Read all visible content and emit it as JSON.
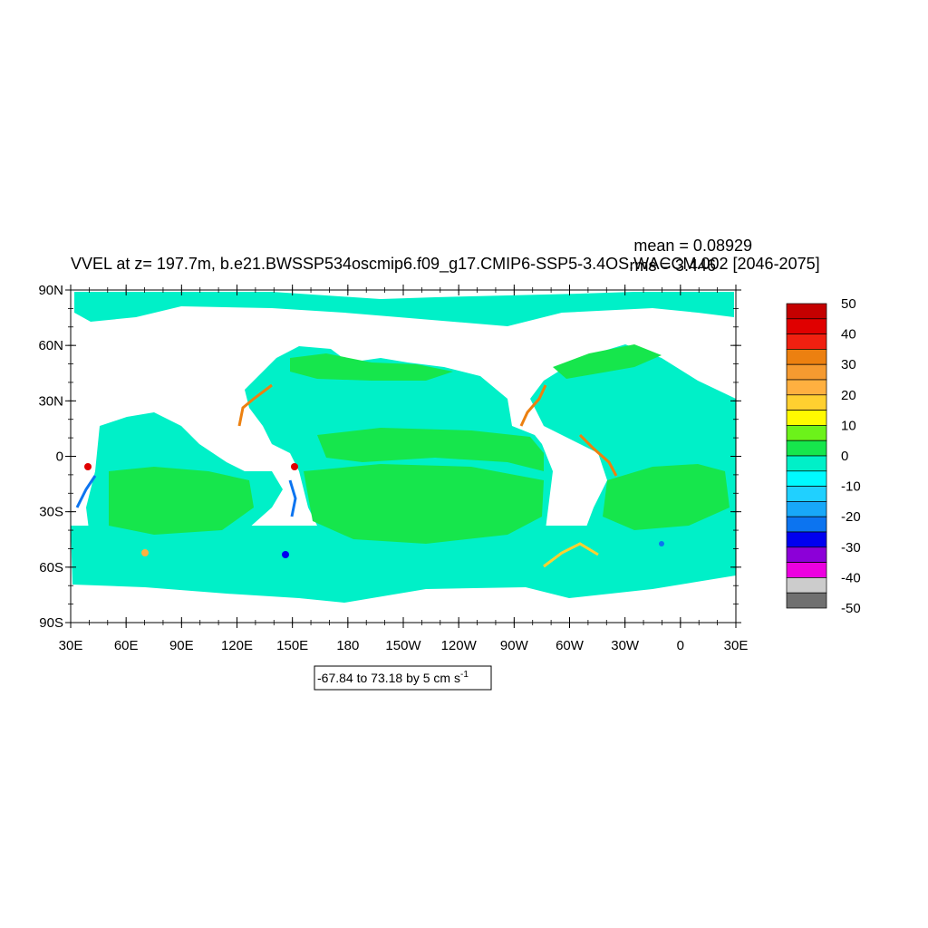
{
  "title": "VVEL at z= 197.7m, b.e21.BWSSP534oscmip6.f09_g17.CMIP6-SSP5-3.4OS.WACCM.002 [2046-2075]",
  "stats": {
    "mean": "mean = 0.08929",
    "rms": "rms = 3.446"
  },
  "contour_info": "-67.84 to 73.18 by 5 cm s",
  "contour_info_sup": "-1",
  "lat_labels": [
    "90N",
    "60N",
    "30N",
    "0",
    "30S",
    "60S",
    "90S"
  ],
  "lon_labels": [
    "30E",
    "60E",
    "90E",
    "120E",
    "150E",
    "180",
    "150W",
    "120W",
    "90W",
    "60W",
    "30W",
    "0",
    "30E"
  ],
  "colorbar": {
    "labels": [
      "50",
      "40",
      "30",
      "20",
      "10",
      "0",
      "-10",
      "-20",
      "-30",
      "-40",
      "-50"
    ],
    "colors": [
      "#c40000",
      "#e00000",
      "#f02010",
      "#ec8010",
      "#f59a30",
      "#ffb040",
      "#ffd030",
      "#fffa00",
      "#6cf21a",
      "#16e64c",
      "#00f0c8",
      "#00faff",
      "#20d0ff",
      "#18a8f8",
      "#0c74f0",
      "#0000f0",
      "#8c00d8",
      "#ec00e0",
      "#cccccc",
      "#707070"
    ]
  },
  "colors": {
    "ocean_main": "#00f0c8",
    "ocean_green": "#16e64c",
    "land": "#ffffff",
    "frame": "#000000"
  }
}
